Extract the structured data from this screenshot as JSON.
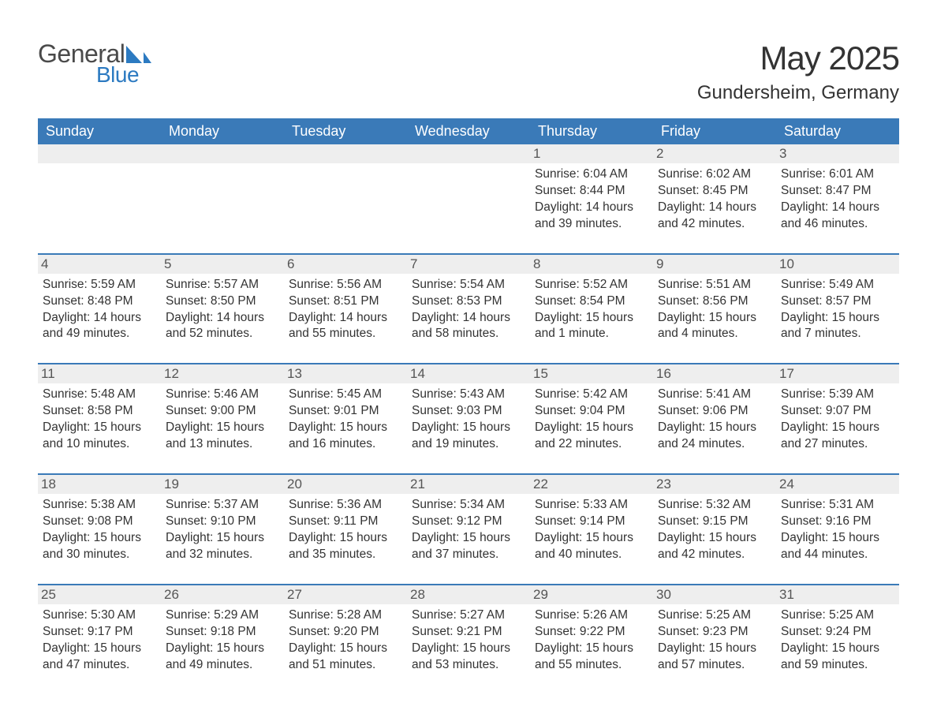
{
  "brand": {
    "word1": "General",
    "word2": "Blue",
    "logo_color": "#2c7ac1",
    "text_color_general": "#4a4a4a"
  },
  "title": "May 2025",
  "location": "Gundersheim, Germany",
  "colors": {
    "header_bg": "#3a7ab8",
    "header_text": "#ffffff",
    "daynum_bg": "#eeeeee",
    "cell_border": "#3a7ab8",
    "body_text": "#333333"
  },
  "weekdays": [
    "Sunday",
    "Monday",
    "Tuesday",
    "Wednesday",
    "Thursday",
    "Friday",
    "Saturday"
  ],
  "leading_blanks": 4,
  "days": [
    {
      "n": 1,
      "sunrise": "6:04 AM",
      "sunset": "8:44 PM",
      "daylight": "14 hours and 39 minutes."
    },
    {
      "n": 2,
      "sunrise": "6:02 AM",
      "sunset": "8:45 PM",
      "daylight": "14 hours and 42 minutes."
    },
    {
      "n": 3,
      "sunrise": "6:01 AM",
      "sunset": "8:47 PM",
      "daylight": "14 hours and 46 minutes."
    },
    {
      "n": 4,
      "sunrise": "5:59 AM",
      "sunset": "8:48 PM",
      "daylight": "14 hours and 49 minutes."
    },
    {
      "n": 5,
      "sunrise": "5:57 AM",
      "sunset": "8:50 PM",
      "daylight": "14 hours and 52 minutes."
    },
    {
      "n": 6,
      "sunrise": "5:56 AM",
      "sunset": "8:51 PM",
      "daylight": "14 hours and 55 minutes."
    },
    {
      "n": 7,
      "sunrise": "5:54 AM",
      "sunset": "8:53 PM",
      "daylight": "14 hours and 58 minutes."
    },
    {
      "n": 8,
      "sunrise": "5:52 AM",
      "sunset": "8:54 PM",
      "daylight": "15 hours and 1 minute."
    },
    {
      "n": 9,
      "sunrise": "5:51 AM",
      "sunset": "8:56 PM",
      "daylight": "15 hours and 4 minutes."
    },
    {
      "n": 10,
      "sunrise": "5:49 AM",
      "sunset": "8:57 PM",
      "daylight": "15 hours and 7 minutes."
    },
    {
      "n": 11,
      "sunrise": "5:48 AM",
      "sunset": "8:58 PM",
      "daylight": "15 hours and 10 minutes."
    },
    {
      "n": 12,
      "sunrise": "5:46 AM",
      "sunset": "9:00 PM",
      "daylight": "15 hours and 13 minutes."
    },
    {
      "n": 13,
      "sunrise": "5:45 AM",
      "sunset": "9:01 PM",
      "daylight": "15 hours and 16 minutes."
    },
    {
      "n": 14,
      "sunrise": "5:43 AM",
      "sunset": "9:03 PM",
      "daylight": "15 hours and 19 minutes."
    },
    {
      "n": 15,
      "sunrise": "5:42 AM",
      "sunset": "9:04 PM",
      "daylight": "15 hours and 22 minutes."
    },
    {
      "n": 16,
      "sunrise": "5:41 AM",
      "sunset": "9:06 PM",
      "daylight": "15 hours and 24 minutes."
    },
    {
      "n": 17,
      "sunrise": "5:39 AM",
      "sunset": "9:07 PM",
      "daylight": "15 hours and 27 minutes."
    },
    {
      "n": 18,
      "sunrise": "5:38 AM",
      "sunset": "9:08 PM",
      "daylight": "15 hours and 30 minutes."
    },
    {
      "n": 19,
      "sunrise": "5:37 AM",
      "sunset": "9:10 PM",
      "daylight": "15 hours and 32 minutes."
    },
    {
      "n": 20,
      "sunrise": "5:36 AM",
      "sunset": "9:11 PM",
      "daylight": "15 hours and 35 minutes."
    },
    {
      "n": 21,
      "sunrise": "5:34 AM",
      "sunset": "9:12 PM",
      "daylight": "15 hours and 37 minutes."
    },
    {
      "n": 22,
      "sunrise": "5:33 AM",
      "sunset": "9:14 PM",
      "daylight": "15 hours and 40 minutes."
    },
    {
      "n": 23,
      "sunrise": "5:32 AM",
      "sunset": "9:15 PM",
      "daylight": "15 hours and 42 minutes."
    },
    {
      "n": 24,
      "sunrise": "5:31 AM",
      "sunset": "9:16 PM",
      "daylight": "15 hours and 44 minutes."
    },
    {
      "n": 25,
      "sunrise": "5:30 AM",
      "sunset": "9:17 PM",
      "daylight": "15 hours and 47 minutes."
    },
    {
      "n": 26,
      "sunrise": "5:29 AM",
      "sunset": "9:18 PM",
      "daylight": "15 hours and 49 minutes."
    },
    {
      "n": 27,
      "sunrise": "5:28 AM",
      "sunset": "9:20 PM",
      "daylight": "15 hours and 51 minutes."
    },
    {
      "n": 28,
      "sunrise": "5:27 AM",
      "sunset": "9:21 PM",
      "daylight": "15 hours and 53 minutes."
    },
    {
      "n": 29,
      "sunrise": "5:26 AM",
      "sunset": "9:22 PM",
      "daylight": "15 hours and 55 minutes."
    },
    {
      "n": 30,
      "sunrise": "5:25 AM",
      "sunset": "9:23 PM",
      "daylight": "15 hours and 57 minutes."
    },
    {
      "n": 31,
      "sunrise": "5:25 AM",
      "sunset": "9:24 PM",
      "daylight": "15 hours and 59 minutes."
    }
  ],
  "labels": {
    "sunrise": "Sunrise: ",
    "sunset": "Sunset: ",
    "daylight": "Daylight: "
  }
}
